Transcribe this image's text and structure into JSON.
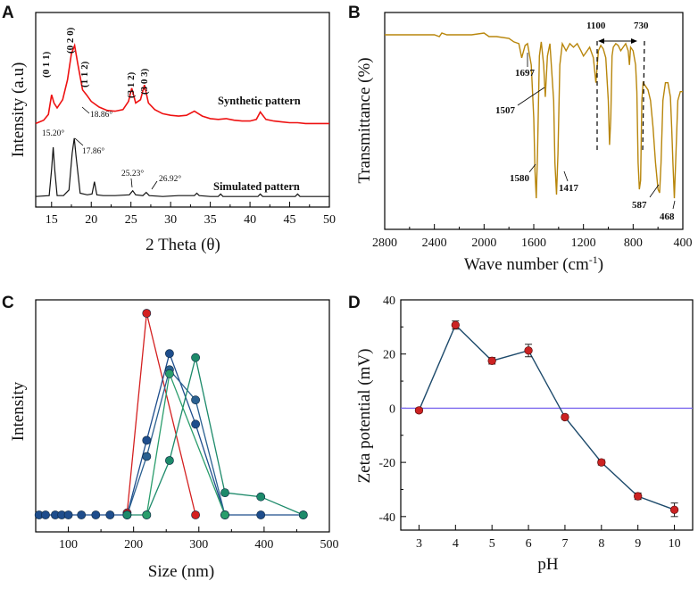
{
  "chart_data": [
    {
      "panel": "A",
      "type": "line",
      "xlabel": "2 Theta (θ)",
      "ylabel": "Intensity (a.u)",
      "xlim": [
        13,
        50
      ],
      "xticks": [
        15,
        20,
        25,
        30,
        35,
        40,
        45,
        50
      ],
      "series": [
        {
          "name": "Synthetic pattern",
          "color": "#ee1111",
          "x": [
            13,
            14,
            14.6,
            15.0,
            15.3,
            15.7,
            16.4,
            17.0,
            17.5,
            17.9,
            18.3,
            18.9,
            19.4,
            20.0,
            21.0,
            22.0,
            23.0,
            24.0,
            24.7,
            25.1,
            25.6,
            26.2,
            26.7,
            27.2,
            28.0,
            29.0,
            30.0,
            31.0,
            32.0,
            33.0,
            34.0,
            35.0,
            36.0,
            37.0,
            38.0,
            39.0,
            40.0,
            40.8,
            41.3,
            42.0,
            43.0,
            44.0,
            45.0,
            46.0,
            47.0,
            48.0,
            49.0,
            50.0
          ],
          "y": [
            0.05,
            0.09,
            0.16,
            0.4,
            0.3,
            0.24,
            0.34,
            0.58,
            0.9,
            1.0,
            0.78,
            0.46,
            0.4,
            0.32,
            0.25,
            0.21,
            0.2,
            0.22,
            0.32,
            0.48,
            0.3,
            0.34,
            0.52,
            0.3,
            0.22,
            0.17,
            0.15,
            0.14,
            0.15,
            0.2,
            0.14,
            0.11,
            0.1,
            0.11,
            0.09,
            0.08,
            0.08,
            0.1,
            0.19,
            0.1,
            0.08,
            0.07,
            0.06,
            0.06,
            0.05,
            0.05,
            0.05,
            0.05
          ]
        },
        {
          "name": "Simulated pattern",
          "color": "#111111",
          "x": [
            13,
            14.7,
            15.0,
            15.2,
            15.4,
            15.7,
            16.5,
            17.2,
            17.6,
            17.86,
            18.1,
            18.6,
            19.5,
            20.1,
            20.4,
            20.7,
            21.5,
            23.0,
            24.8,
            25.23,
            25.6,
            26.5,
            26.92,
            27.3,
            29.0,
            31.0,
            33.0,
            33.3,
            33.6,
            35.0,
            36.0,
            36.3,
            36.6,
            38.0,
            40.0,
            41.0,
            41.3,
            41.6,
            43.0,
            45.0,
            45.7,
            46.0,
            46.3,
            48.0,
            50.0
          ],
          "y": [
            0.02,
            0.03,
            0.35,
            0.62,
            0.35,
            0.03,
            0.03,
            0.1,
            0.55,
            0.73,
            0.5,
            0.06,
            0.04,
            0.05,
            0.2,
            0.04,
            0.03,
            0.03,
            0.04,
            0.09,
            0.04,
            0.03,
            0.07,
            0.03,
            0.02,
            0.03,
            0.03,
            0.06,
            0.03,
            0.02,
            0.02,
            0.05,
            0.02,
            0.02,
            0.02,
            0.02,
            0.05,
            0.02,
            0.02,
            0.02,
            0.02,
            0.05,
            0.02,
            0.02,
            0.02
          ]
        }
      ],
      "peak_labels": [
        "(0 1 1)",
        "(0 2 0)",
        "(1 1 2)",
        "(3 1 2)",
        "(3 0 3)"
      ],
      "annotations": [
        "18.86°",
        "15.20°",
        "17.86°",
        "25.23°",
        "26.92°"
      ]
    },
    {
      "panel": "B",
      "type": "line",
      "xlabel": "Wave number (cm",
      "xlabel_sup": "-1",
      "xlabel_end": ")",
      "ylabel": "Transmittance (%)",
      "xlim": [
        2800,
        400
      ],
      "xticks": [
        2800,
        2400,
        2000,
        1600,
        1200,
        800,
        400
      ],
      "color": "#b8860b",
      "x": [
        2800,
        2600,
        2400,
        2360,
        2340,
        2300,
        2100,
        2000,
        1960,
        1900,
        1800,
        1760,
        1720,
        1697,
        1670,
        1650,
        1620,
        1600,
        1590,
        1580,
        1570,
        1555,
        1540,
        1520,
        1507,
        1490,
        1470,
        1440,
        1430,
        1417,
        1405,
        1390,
        1370,
        1340,
        1310,
        1280,
        1250,
        1220,
        1200,
        1180,
        1150,
        1120,
        1100,
        1080,
        1060,
        1040,
        1020,
        1000,
        990,
        980,
        970,
        960,
        940,
        920,
        900,
        880,
        860,
        840,
        830,
        820,
        800,
        780,
        770,
        760,
        750,
        740,
        730,
        720,
        700,
        680,
        660,
        640,
        620,
        600,
        587,
        575,
        560,
        540,
        520,
        500,
        490,
        480,
        468,
        455,
        440,
        420,
        400
      ],
      "y": [
        97,
        97,
        97,
        96,
        98,
        97,
        97,
        98,
        96,
        96,
        95,
        93,
        92,
        84,
        91,
        92,
        80,
        50,
        20,
        5,
        30,
        85,
        93,
        80,
        62,
        85,
        92,
        60,
        25,
        7,
        30,
        80,
        92,
        88,
        92,
        90,
        92,
        88,
        85,
        87,
        90,
        84,
        70,
        88,
        91,
        89,
        84,
        60,
        35,
        50,
        85,
        90,
        92,
        91,
        88,
        90,
        92,
        88,
        80,
        90,
        88,
        80,
        65,
        25,
        10,
        15,
        60,
        70,
        68,
        66,
        60,
        45,
        25,
        10,
        8,
        25,
        60,
        70,
        70,
        62,
        45,
        25,
        5,
        30,
        60,
        65,
        65
      ],
      "annotations": [
        "1697",
        "1507",
        "1580",
        "1417",
        "1100",
        "730",
        "587",
        "468"
      ]
    },
    {
      "panel": "C",
      "type": "line",
      "xlabel": "Size (nm)",
      "ylabel": "Intensity",
      "xlim": [
        50,
        500
      ],
      "xticks": [
        100,
        200,
        300,
        400,
        500
      ],
      "series": [
        {
          "name": "series-red",
          "color": "#d42020",
          "x": [
            190,
            220,
            295
          ],
          "y": [
            0.01,
            1.0,
            0
          ]
        },
        {
          "name": "series-blue-1",
          "color": "#1e4d8c",
          "x": [
            55,
            65,
            80,
            90,
            100,
            120,
            142,
            164,
            190,
            220,
            255,
            295,
            340,
            395,
            460
          ],
          "y": [
            0,
            0,
            0,
            0,
            0,
            0,
            0,
            0,
            0,
            0.37,
            0.8,
            0.45,
            0,
            0,
            0
          ]
        },
        {
          "name": "series-blue-2",
          "color": "#2a6090",
          "x": [
            190,
            220,
            255,
            295,
            340
          ],
          "y": [
            0,
            0.29,
            0.72,
            0.57,
            0
          ]
        },
        {
          "name": "series-teal-1",
          "color": "#1d8a6a",
          "x": [
            190,
            220,
            255,
            295,
            340,
            395,
            460
          ],
          "y": [
            0,
            0,
            0.27,
            0.78,
            0.11,
            0.09,
            0
          ]
        },
        {
          "name": "series-teal-2",
          "color": "#2a9d6c",
          "x": [
            220,
            255,
            340
          ],
          "y": [
            0,
            0.7,
            0
          ]
        }
      ]
    },
    {
      "panel": "D",
      "type": "line",
      "xlabel": "pH",
      "ylabel": "Zeta potential (mV)",
      "xlim": [
        2.5,
        10.5
      ],
      "ylim": [
        -45,
        40
      ],
      "xticks": [
        3,
        4,
        5,
        6,
        7,
        8,
        9,
        10
      ],
      "yticks": [
        40,
        20,
        0,
        -20,
        -40
      ],
      "zero_line_color": "#7b68ee",
      "line_color": "#1d4a6b",
      "marker_color": "#cc2222",
      "x": [
        3,
        4,
        5,
        6,
        7,
        8,
        9,
        10
      ],
      "y": [
        -0.8,
        30.7,
        17.5,
        21.3,
        -3.3,
        -20.0,
        -32.5,
        -37.5
      ],
      "error": [
        0.8,
        1.5,
        1.2,
        2.3,
        0.8,
        1.0,
        1.2,
        2.5
      ]
    }
  ]
}
